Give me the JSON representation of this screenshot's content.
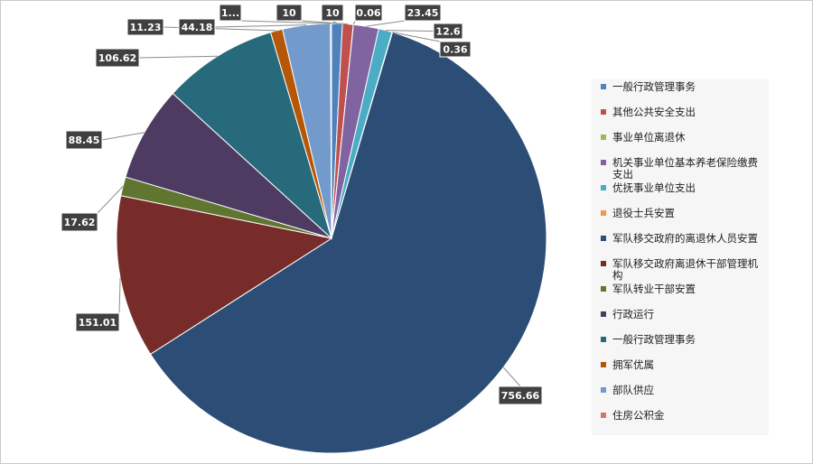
{
  "chart_data": {
    "type": "pie",
    "title": "",
    "categories": [
      "一般行政管理事务",
      "其他公共安全支出",
      "事业单位离退休",
      "机关事业单位基本养老保险缴费支出",
      "优抚事业单位支出",
      "退役士兵安置",
      "军队移交政府的离退休人员安置",
      "军队移交政府离退休干部管理机构",
      "军队转业干部安置",
      "行政运行",
      "一般行政管理事务",
      "拥军优属",
      "部队供应",
      "住房公积金"
    ],
    "values": [
      10,
      10,
      0.06,
      23.45,
      12.6,
      0.36,
      756.66,
      151.01,
      17.62,
      88.45,
      106.62,
      11.23,
      44.18,
      1
    ],
    "data_labels": [
      "10",
      "10",
      "0.06",
      "23.45",
      "12.6",
      "0.36",
      "756.66",
      "151.01",
      "17.62",
      "88.45",
      "106.62",
      "11.23",
      "44.18",
      "1..."
    ],
    "colors": [
      "#4f81bd",
      "#c0504d",
      "#9bbb59",
      "#8064a2",
      "#4bacc6",
      "#f79646",
      "#2c4d75",
      "#772c2a",
      "#5f7530",
      "#4d3b62",
      "#276a7c",
      "#b65708",
      "#729aca",
      "#d9726e"
    ],
    "legend_position": "right"
  }
}
